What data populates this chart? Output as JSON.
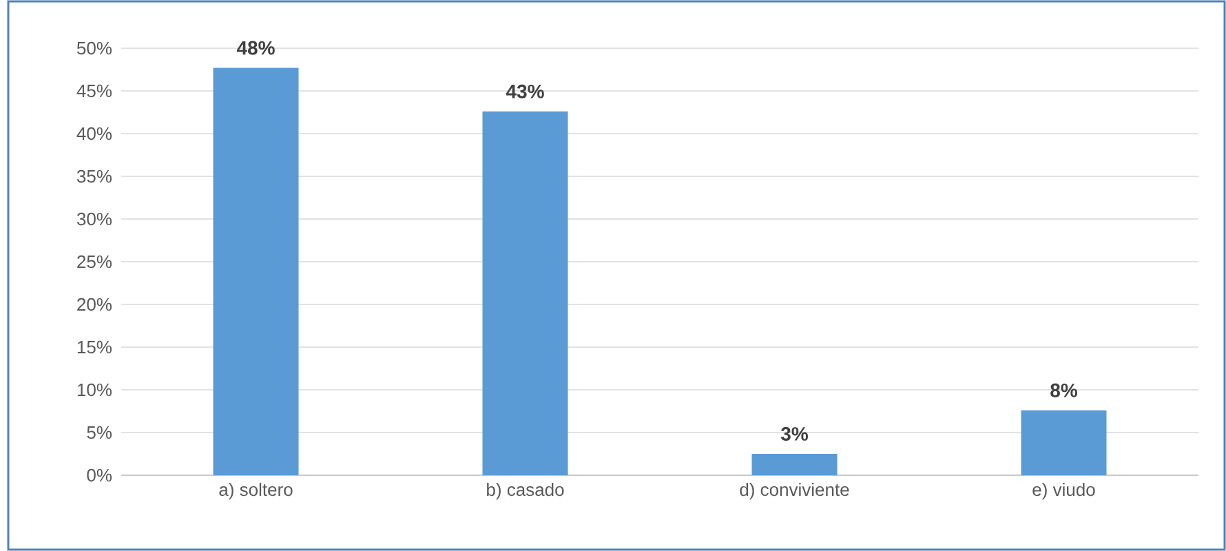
{
  "chart_data": {
    "type": "bar",
    "categories": [
      "a) soltero",
      "b) casado",
      "d) conviviente",
      "e) viudo"
    ],
    "values": [
      47.7,
      42.6,
      2.5,
      7.6
    ],
    "value_labels": [
      "48%",
      "43%",
      "3%",
      "8%"
    ],
    "color": "#5b9bd5",
    "ylim": [
      0,
      50
    ],
    "yticks": [
      {
        "value": 0,
        "label": "0%"
      },
      {
        "value": 5,
        "label": "5%"
      },
      {
        "value": 10,
        "label": "10%"
      },
      {
        "value": 15,
        "label": "15%"
      },
      {
        "value": 20,
        "label": "20%"
      },
      {
        "value": 25,
        "label": "25%"
      },
      {
        "value": 30,
        "label": "30%"
      },
      {
        "value": 35,
        "label": "35%"
      },
      {
        "value": 40,
        "label": "40%"
      },
      {
        "value": 45,
        "label": "45%"
      },
      {
        "value": 50,
        "label": "50%"
      }
    ],
    "grid": "y"
  }
}
